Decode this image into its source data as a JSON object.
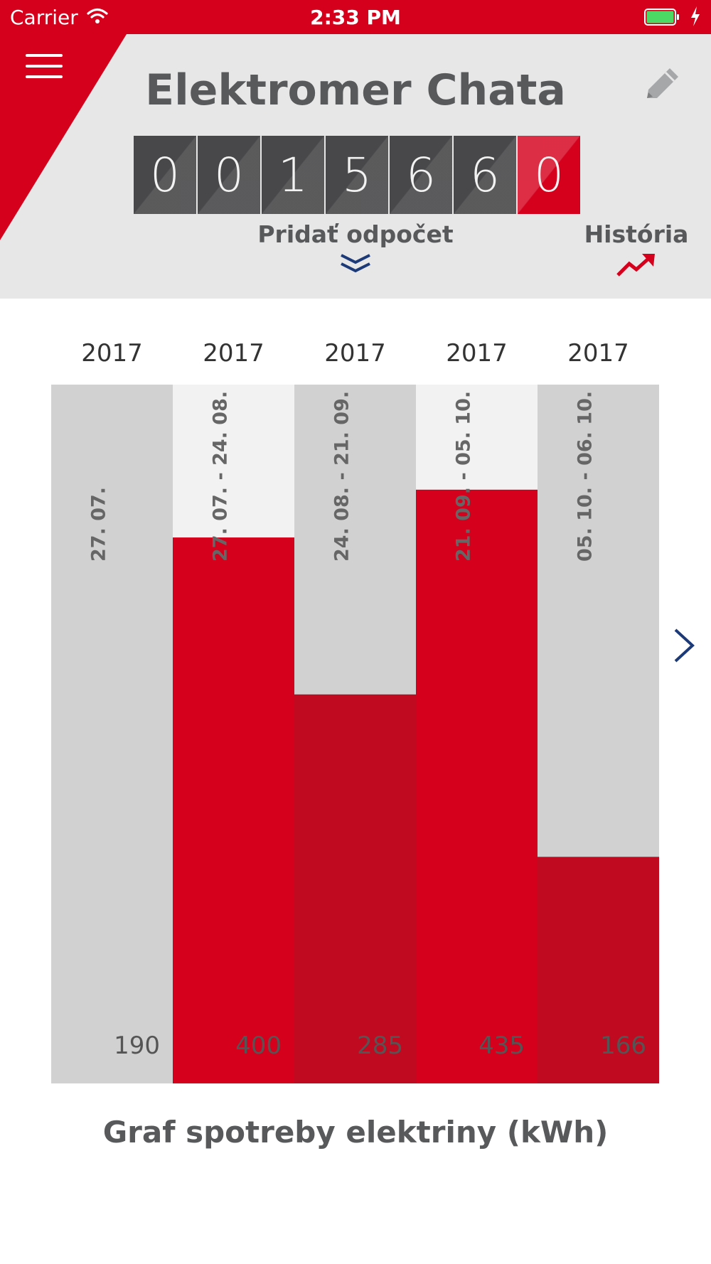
{
  "status_bar": {
    "carrier": "Carrier",
    "time": "2:33 PM"
  },
  "header": {
    "title": "Elektromer Chata",
    "meter_digits": [
      "0",
      "0",
      "1",
      "5",
      "6",
      "6",
      "0"
    ],
    "add_reading_label": "Pridať odpočet",
    "history_label": "História"
  },
  "colors": {
    "brand_red": "#d5001c",
    "dark_red": "#c00a20",
    "gray_bar": "#d1d1d2",
    "light_bar": "#f2f2f3",
    "text_gray": "#58595b",
    "nav_blue": "#1c3a78"
  },
  "chart_data": {
    "type": "bar",
    "title": "Graf spotreby elektriny (kWh)",
    "years": [
      "2017",
      "2017",
      "2017",
      "2017",
      "2017"
    ],
    "categories": [
      "27. 07.",
      "27. 07. - 24. 08.",
      "24. 08. - 21. 09.",
      "21. 09. - 05. 10.",
      "05. 10. - 06. 10."
    ],
    "values": [
      190,
      400,
      285,
      435,
      166
    ],
    "ylim": [
      0,
      512
    ],
    "grid": false
  },
  "icons": {
    "menu": "hamburger-icon",
    "edit": "pencil-icon",
    "expand": "double-chevron-down-icon",
    "history": "trend-up-icon",
    "next": "chevron-right-icon"
  }
}
